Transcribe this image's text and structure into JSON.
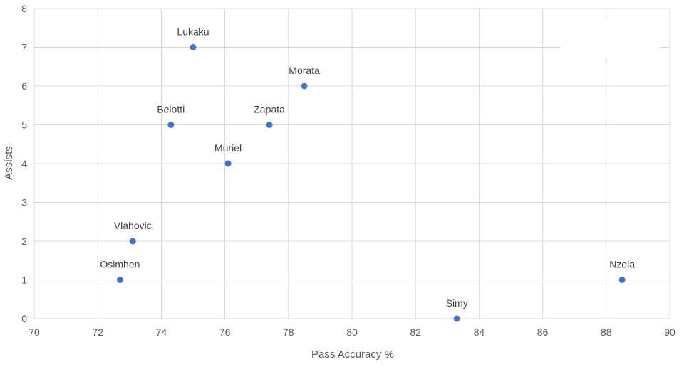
{
  "chart_data": {
    "type": "scatter",
    "title": "",
    "xlabel": "Pass Accuracy %",
    "ylabel": "Assists",
    "xlim": [
      70,
      90
    ],
    "ylim": [
      0,
      8
    ],
    "x_ticks": [
      "70",
      "72",
      "74",
      "76",
      "78",
      "80",
      "82",
      "84",
      "86",
      "88",
      "90"
    ],
    "y_ticks": [
      "0",
      "1",
      "2",
      "3",
      "4",
      "5",
      "6",
      "7",
      "8"
    ],
    "grid": true,
    "marker_color": "#4472C4",
    "points": [
      {
        "label": "Lukaku",
        "x": 75.0,
        "y": 7
      },
      {
        "label": "Morata",
        "x": 78.5,
        "y": 6
      },
      {
        "label": "Belotti",
        "x": 74.3,
        "y": 5
      },
      {
        "label": "Zapata",
        "x": 77.4,
        "y": 5
      },
      {
        "label": "Muriel",
        "x": 76.1,
        "y": 4
      },
      {
        "label": "Vlahovic",
        "x": 73.1,
        "y": 2
      },
      {
        "label": "Osimhen",
        "x": 72.7,
        "y": 1
      },
      {
        "label": "Nzola",
        "x": 88.5,
        "y": 1
      },
      {
        "label": "Simy",
        "x": 83.3,
        "y": 0
      }
    ]
  }
}
